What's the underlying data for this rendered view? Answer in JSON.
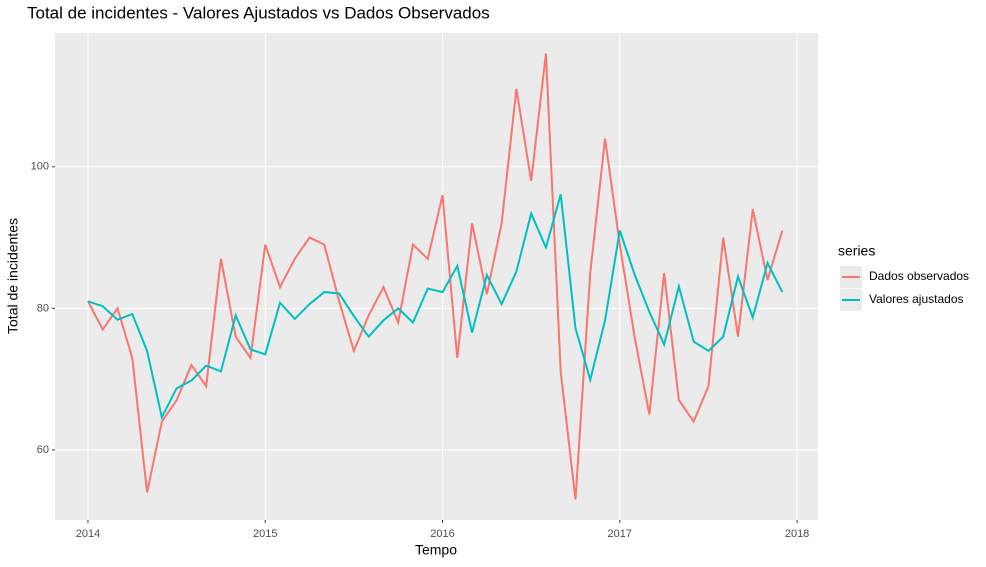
{
  "chart_data": {
    "type": "line",
    "title": "Total de incidentes - Valores Ajustados vs Dados Observados",
    "x_label": "Tempo",
    "y_label": "Total de incidentes",
    "legend_title": "series",
    "x": [
      2014,
      2014.0833,
      2014.1667,
      2014.25,
      2014.3333,
      2014.4167,
      2014.5,
      2014.5833,
      2014.6667,
      2014.75,
      2014.8333,
      2014.9167,
      2015,
      2015.0833,
      2015.1667,
      2015.25,
      2015.3333,
      2015.4167,
      2015.5,
      2015.5833,
      2015.6667,
      2015.75,
      2015.8333,
      2015.9167,
      2016,
      2016.0833,
      2016.1667,
      2016.25,
      2016.3333,
      2016.4167,
      2016.5,
      2016.5833,
      2016.6667,
      2016.75,
      2016.8333,
      2016.9167,
      2017,
      2017.0833,
      2017.1667,
      2017.25,
      2017.3333,
      2017.4167,
      2017.5,
      2017.5833,
      2017.6667,
      2017.75,
      2017.8333,
      2017.9167
    ],
    "series": [
      {
        "name": "Dados observados",
        "color": "#F8766D",
        "values": [
          81,
          77,
          80,
          73,
          54,
          64,
          67,
          72,
          69,
          87,
          76,
          73,
          89,
          83,
          87,
          90,
          89,
          81,
          74,
          79,
          83,
          78,
          89,
          87,
          96,
          73,
          92,
          82,
          92,
          111,
          98,
          116,
          71,
          53,
          85,
          104,
          89,
          76,
          65,
          85,
          67,
          64,
          69,
          90,
          76,
          94,
          84,
          91
        ]
      },
      {
        "name": "Valores ajustados",
        "color": "#00BFC4",
        "values": [
          81,
          80.3,
          78.4,
          79.2,
          74,
          64.6,
          68.7,
          69.8,
          71.9,
          71.1,
          79,
          74.2,
          73.5,
          80.8,
          78.5,
          80.6,
          82.3,
          82.1,
          78.9,
          76,
          78.3,
          80,
          78,
          82.8,
          82.3,
          86,
          76.6,
          84.7,
          80.6,
          85.2,
          93.4,
          88.6,
          96.1,
          77.2,
          69.9,
          78.3,
          91,
          84.8,
          79.5,
          74.9,
          83.1,
          75.3,
          74,
          76,
          84.5,
          78.7,
          86.4,
          82.3
        ]
      }
    ],
    "xlim": [
      2013.814,
      2018.118
    ],
    "xticks": [
      2014,
      2015,
      2016,
      2017,
      2018
    ],
    "ylim": [
      50.1,
      118.9
    ],
    "yticks": [
      60,
      80,
      100
    ],
    "grid": true
  }
}
